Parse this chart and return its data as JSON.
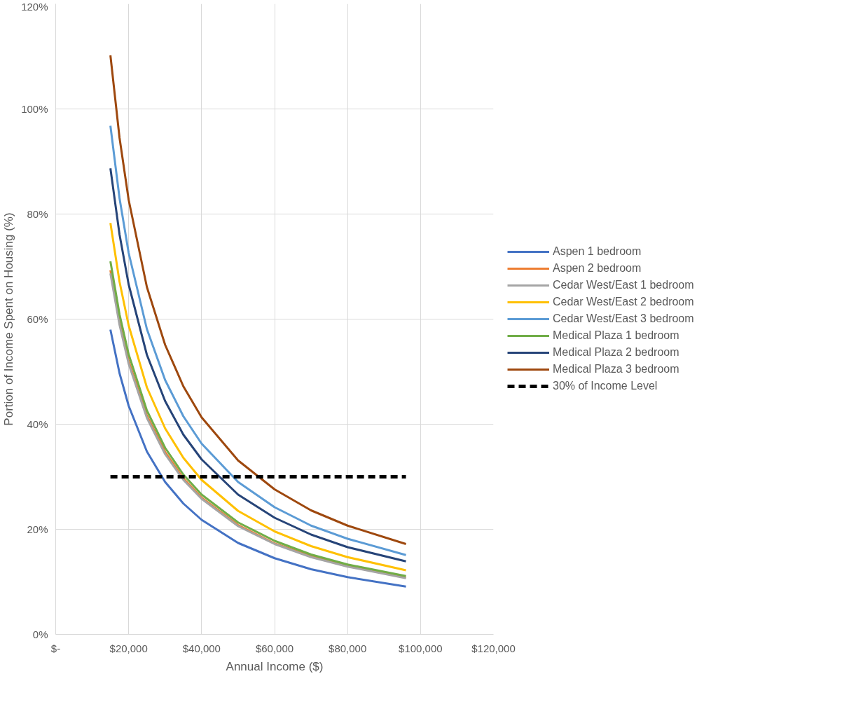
{
  "chart_data": {
    "type": "line",
    "xlabel": "Annual Income ($)",
    "ylabel": "Portion of Income Spent on Housing (%)",
    "x": [
      15000,
      17500,
      20000,
      25000,
      30000,
      35000,
      40000,
      50000,
      60000,
      70000,
      80000,
      96000
    ],
    "xlim": [
      0,
      120000
    ],
    "xticks": [
      {
        "value": 0,
        "label": "$-"
      },
      {
        "value": 20000,
        "label": "$20,000"
      },
      {
        "value": 40000,
        "label": "$40,000"
      },
      {
        "value": 60000,
        "label": "$60,000"
      },
      {
        "value": 80000,
        "label": "$80,000"
      },
      {
        "value": 100000,
        "label": "$100,000"
      },
      {
        "value": 120000,
        "label": "$120,000"
      }
    ],
    "ylim": [
      0,
      120
    ],
    "yticks": [
      {
        "value": 0,
        "label": "0%"
      },
      {
        "value": 20,
        "label": "20%"
      },
      {
        "value": 40,
        "label": "40%"
      },
      {
        "value": 60,
        "label": "60%"
      },
      {
        "value": 80,
        "label": "80%"
      },
      {
        "value": 100,
        "label": "100%"
      },
      {
        "value": 120,
        "label": "120%"
      }
    ],
    "grid": true,
    "legend": "right",
    "marker": "none",
    "series": [
      {
        "name": "Aspen 1 bedroom",
        "color": "#4472c4",
        "values": [
          58.0,
          49.7,
          43.5,
          34.8,
          29.0,
          24.9,
          21.8,
          17.4,
          14.5,
          12.4,
          10.9,
          9.1
        ]
      },
      {
        "name": "Aspen 2 bedroom",
        "color": "#ed7d31",
        "values": [
          69.3,
          59.4,
          52.0,
          41.6,
          34.7,
          29.7,
          26.0,
          20.8,
          17.3,
          14.9,
          13.0,
          10.8
        ]
      },
      {
        "name": "Cedar West/East 1 bedroom",
        "color": "#a5a5a5",
        "values": [
          68.7,
          58.9,
          51.5,
          41.2,
          34.3,
          29.4,
          25.8,
          20.6,
          17.2,
          14.7,
          12.9,
          10.7
        ]
      },
      {
        "name": "Cedar West/East 2 bedroom",
        "color": "#ffc000",
        "values": [
          78.3,
          67.1,
          58.8,
          47.0,
          39.2,
          33.6,
          29.4,
          23.5,
          19.6,
          16.8,
          14.7,
          12.2
        ]
      },
      {
        "name": "Cedar West/East 3 bedroom",
        "color": "#5b9bd5",
        "values": [
          96.8,
          83.0,
          72.6,
          58.1,
          48.4,
          41.5,
          36.3,
          29.0,
          24.2,
          20.7,
          18.2,
          15.1
        ]
      },
      {
        "name": "Medical Plaza 1 bedroom",
        "color": "#70ad47",
        "values": [
          71.0,
          60.9,
          53.3,
          42.6,
          35.5,
          30.4,
          26.6,
          21.3,
          17.8,
          15.2,
          13.3,
          11.1
        ]
      },
      {
        "name": "Medical Plaza 2 bedroom",
        "color": "#264478",
        "values": [
          88.7,
          76.1,
          66.6,
          53.2,
          44.4,
          38.0,
          33.3,
          26.6,
          22.2,
          19.0,
          16.6,
          13.9
        ]
      },
      {
        "name": "Medical Plaza 3 bedroom",
        "color": "#9e480e",
        "values": [
          110.2,
          94.5,
          82.7,
          66.1,
          55.1,
          47.2,
          41.3,
          33.1,
          27.6,
          23.6,
          20.7,
          17.2
        ]
      },
      {
        "name": "30% of Income Level",
        "color": "#000000",
        "line_style": "dashed",
        "x": [
          15000,
          96000
        ],
        "values": [
          30,
          30
        ]
      }
    ]
  }
}
